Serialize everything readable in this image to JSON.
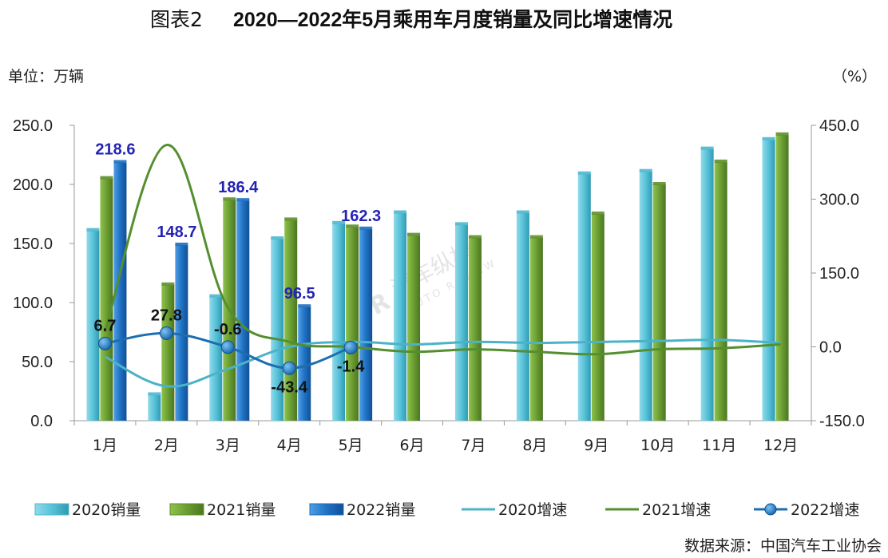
{
  "chart_data": {
    "type": "bar",
    "title_prefix": "图表2",
    "title": "2020—2022年5月乘用车月度销量及同比增速情况",
    "left_unit": "单位：万辆",
    "right_unit": "（%）",
    "source": "数据来源：中国汽车工业协会",
    "watermark": "汽车纵横 AUTO REVIEW",
    "categories": [
      "1月",
      "2月",
      "3月",
      "4月",
      "5月",
      "6月",
      "7月",
      "8月",
      "9月",
      "10月",
      "11月",
      "12月"
    ],
    "y_left": {
      "min": 0,
      "max": 250,
      "ticks": [
        "0.0",
        "50.0",
        "100.0",
        "150.0",
        "200.0",
        "250.0"
      ]
    },
    "y_right": {
      "min": -150,
      "max": 450,
      "ticks": [
        "-150.0",
        "0.0",
        "150.0",
        "300.0",
        "450.0"
      ]
    },
    "bar_series": [
      {
        "name": "2020销量",
        "color": "#4cb8cf",
        "values": [
          161,
          22,
          105,
          154,
          167,
          176,
          166,
          176,
          209,
          211,
          230,
          238
        ]
      },
      {
        "name": "2021销量",
        "color": "#5f8f2c",
        "values": [
          205,
          115,
          187,
          170,
          164,
          157,
          155,
          155,
          175,
          200,
          219,
          242
        ]
      },
      {
        "name": "2022销量",
        "color": "#1e6fc0",
        "values": [
          218.6,
          148.7,
          186.4,
          96.5,
          162.3,
          null,
          null,
          null,
          null,
          null,
          null,
          null
        ]
      }
    ],
    "line_series": [
      {
        "name": "2020增速",
        "color": "#4cb3c6",
        "values": [
          -20,
          -80,
          -45,
          0,
          10,
          5,
          10,
          8,
          10,
          12,
          14,
          8
        ]
      },
      {
        "name": "2021增速",
        "color": "#548f2f",
        "values": [
          30,
          410,
          80,
          10,
          0,
          -10,
          -5,
          -10,
          -15,
          -5,
          -3,
          5
        ]
      },
      {
        "name": "2022增速",
        "color": "#1d6db0",
        "values": [
          6.7,
          27.8,
          -0.6,
          -43.4,
          -1.4,
          null,
          null,
          null,
          null,
          null,
          null,
          null
        ]
      }
    ],
    "bar_labels_2022": [
      "218.6",
      "148.7",
      "186.4",
      "96.5",
      "162.3"
    ],
    "growth_labels_2022": [
      "6.7",
      "27.8",
      "-0.6",
      "-43.4",
      "-1.4"
    ],
    "legend": [
      "2020销量",
      "2021销量",
      "2022销量",
      "2020增速",
      "2021增速",
      "2022增速"
    ],
    "legend_position": "bottom"
  }
}
